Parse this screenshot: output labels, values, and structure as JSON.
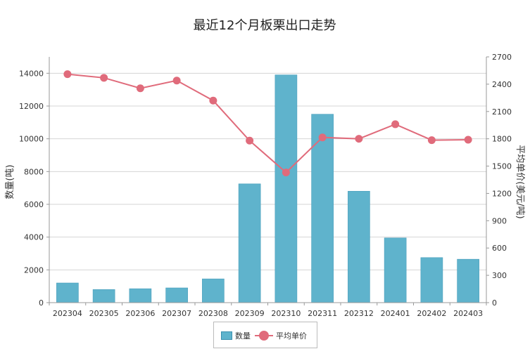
{
  "chart_data": {
    "type": "bar",
    "title": "最近12个月板栗出口走势",
    "categories": [
      "202304",
      "202305",
      "202306",
      "202307",
      "202308",
      "202309",
      "202310",
      "202311",
      "202312",
      "202401",
      "202402",
      "202403"
    ],
    "series": [
      {
        "name": "数量",
        "type": "bar",
        "axis": "left",
        "color": "#5fb3cc",
        "values": [
          1200,
          800,
          850,
          900,
          1450,
          7250,
          13900,
          11500,
          6800,
          3950,
          2750,
          2650
        ]
      },
      {
        "name": "平均单价",
        "type": "line",
        "axis": "right",
        "color": "#e06b7b",
        "values": [
          2510,
          2470,
          2355,
          2440,
          2220,
          1780,
          1430,
          1815,
          1800,
          1960,
          1785,
          1790
        ]
      }
    ],
    "ylabel": "数量(吨)",
    "ylabel_right": "平均单价(美元/吨)",
    "ylim": [
      0,
      15000
    ],
    "y_ticks": [
      0,
      2000,
      4000,
      6000,
      8000,
      10000,
      12000,
      14000
    ],
    "ylim_right": [
      0,
      2700
    ],
    "y_ticks_right": [
      0,
      300,
      600,
      900,
      1200,
      1500,
      1800,
      2100,
      2400,
      2700
    ],
    "grid": true,
    "legend_position": "bottom-center"
  },
  "legend": {
    "bar_label": "数量",
    "line_label": "平均单价"
  }
}
